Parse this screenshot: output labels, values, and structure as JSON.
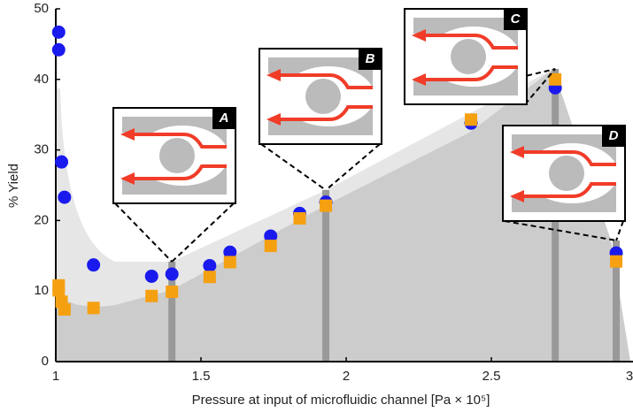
{
  "chart_data": {
    "type": "scatter",
    "x_label": "Pressure at input of microfluidic channel [Pa × 10⁵]",
    "y_label": "% Yield",
    "xlim": [
      1,
      3
    ],
    "ylim": [
      0,
      50
    ],
    "xticks": [
      1,
      1.5,
      2,
      2.5,
      3
    ],
    "yticks": [
      0,
      10,
      20,
      30,
      40,
      50
    ],
    "series": [
      {
        "color": "#1a1aee",
        "marker": "circle",
        "x": [
          1.01,
          1.01,
          1.02,
          1.03,
          1.13,
          1.33,
          1.4,
          1.53,
          1.6,
          1.74,
          1.84,
          1.93,
          2.43,
          2.72,
          2.93
        ],
        "values": [
          46.7,
          44.2,
          28.3,
          23.3,
          13.7,
          12.1,
          12.4,
          13.6,
          15.5,
          17.8,
          21.0,
          22.6,
          33.8,
          38.8,
          15.4
        ]
      },
      {
        "color": "#f5a011",
        "marker": "square",
        "x": [
          1.01,
          1.01,
          1.02,
          1.03,
          1.13,
          1.33,
          1.4,
          1.53,
          1.6,
          1.74,
          1.84,
          1.93,
          2.43,
          2.72,
          2.93
        ],
        "values": [
          10.8,
          10.1,
          8.5,
          7.4,
          7.6,
          9.3,
          9.9,
          12.0,
          14.1,
          16.4,
          20.3,
          22.1,
          34.3,
          40.0,
          14.2
        ]
      }
    ],
    "annotations": [
      {
        "label": "A",
        "x": 1.4
      },
      {
        "label": "B",
        "x": 1.93
      },
      {
        "label": "C",
        "x": 2.72
      },
      {
        "label": "D",
        "x": 2.93
      }
    ]
  }
}
